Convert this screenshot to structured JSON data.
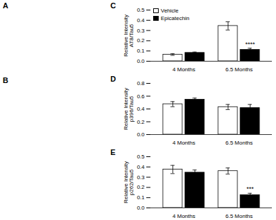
{
  "chart_data": [
    {
      "type": "bar",
      "title": "C",
      "ylabel": "Relative Intensity\nAT8/Tau5",
      "categories": [
        "4 Months",
        "6.5 Months"
      ],
      "series": [
        {
          "name": "Vehicle",
          "color": "white",
          "values": [
            0.065,
            0.345
          ],
          "errors": [
            0.008,
            0.04
          ]
        },
        {
          "name": "Epicatechin",
          "color": "black",
          "values": [
            0.082,
            0.112
          ],
          "errors": [
            0.008,
            0.015
          ],
          "significance": [
            null,
            "****"
          ]
        }
      ],
      "ylim": [
        0,
        0.5
      ],
      "yticks": [
        {
          "value": 0.0,
          "label": "0.0"
        },
        0.1,
        0.2,
        0.3,
        0.4,
        0.5
      ],
      "legend": "upper left"
    },
    {
      "type": "bar",
      "title": "D",
      "ylabel": "Relative Intensity\np396/Tau5",
      "categories": [
        "4 Months",
        "6.5 Months"
      ],
      "series": [
        {
          "name": "Vehicle",
          "color": "white",
          "values": [
            0.475,
            0.43
          ],
          "errors": [
            0.04,
            0.04
          ]
        },
        {
          "name": "Epicatechin",
          "color": "black",
          "values": [
            0.545,
            0.415
          ],
          "errors": [
            0.025,
            0.055
          ]
        }
      ],
      "ylim": [
        0,
        0.8
      ],
      "yticks": [
        {
          "value": 0.0,
          "label": "0.0"
        },
        0.2,
        0.4,
        0.6,
        0.8
      ]
    },
    {
      "type": "bar",
      "title": "E",
      "ylabel": "Relative Intensity\np262/Tau5",
      "categories": [
        "4 Months",
        "6.5 Months"
      ],
      "series": [
        {
          "name": "Vehicle",
          "color": "white",
          "values": [
            0.375,
            0.36
          ],
          "errors": [
            0.04,
            0.03
          ]
        },
        {
          "name": "Epicatechin",
          "color": "black",
          "values": [
            0.345,
            0.125
          ],
          "errors": [
            0.025,
            0.018
          ],
          "significance": [
            null,
            "***"
          ]
        }
      ],
      "ylim": [
        0,
        0.5
      ],
      "yticks": [
        {
          "value": 0.0,
          "label": "0.0"
        },
        0.1,
        0.2,
        0.3,
        0.4,
        0.5
      ]
    }
  ],
  "annotations": [
    "A",
    "B"
  ]
}
